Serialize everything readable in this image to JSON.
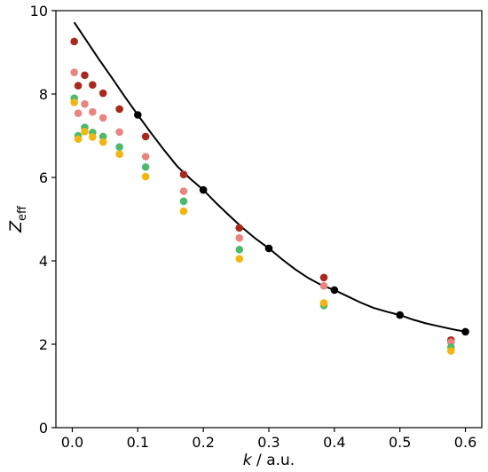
{
  "chart_data": {
    "type": "scatter",
    "title": "",
    "xlabel": "a.u.",
    "xlabel_var": "k",
    "xlabel_sep": " / ",
    "ylabel_main": "Z",
    "ylabel_sub": "eff",
    "xlim": [
      -0.025,
      0.625
    ],
    "ylim": [
      0,
      10
    ],
    "xticks": [
      0.0,
      0.1,
      0.2,
      0.3,
      0.4,
      0.5,
      0.6
    ],
    "xtick_labels": [
      "0.0",
      "0.1",
      "0.2",
      "0.3",
      "0.4",
      "0.5",
      "0.6"
    ],
    "yticks": [
      0,
      2,
      4,
      6,
      8,
      10
    ],
    "ytick_labels": [
      "0",
      "2",
      "4",
      "6",
      "8",
      "10"
    ],
    "grid": false,
    "curve": {
      "color": "#000000",
      "x": [
        0.003,
        0.02,
        0.04,
        0.06,
        0.08,
        0.1,
        0.12,
        0.14,
        0.16,
        0.18,
        0.2,
        0.22,
        0.24,
        0.26,
        0.28,
        0.3,
        0.32,
        0.34,
        0.36,
        0.38,
        0.4,
        0.42,
        0.44,
        0.46,
        0.48,
        0.5,
        0.52,
        0.54,
        0.56,
        0.58,
        0.6
      ],
      "y": [
        9.72,
        9.32,
        8.85,
        8.4,
        7.94,
        7.5,
        7.07,
        6.66,
        6.27,
        5.97,
        5.7,
        5.38,
        5.08,
        4.79,
        4.53,
        4.3,
        4.04,
        3.8,
        3.59,
        3.42,
        3.3,
        3.15,
        3.0,
        2.87,
        2.78,
        2.7,
        2.59,
        2.5,
        2.43,
        2.36,
        2.3
      ]
    },
    "series": [
      {
        "color": "#000000",
        "x": [
          0.1,
          0.2,
          0.3,
          0.4,
          0.5,
          0.6
        ],
        "y": [
          7.5,
          5.7,
          4.3,
          3.3,
          2.7,
          2.3
        ]
      },
      {
        "color": "#a8291f",
        "x": [
          0.003,
          0.009,
          0.019,
          0.031,
          0.047,
          0.072,
          0.112,
          0.17,
          0.255,
          0.384,
          0.578
        ],
        "y": [
          9.26,
          8.2,
          8.45,
          8.22,
          8.02,
          7.64,
          6.98,
          6.07,
          4.79,
          3.6,
          2.1
        ]
      },
      {
        "color": "#e88580",
        "x": [
          0.003,
          0.009,
          0.019,
          0.031,
          0.047,
          0.072,
          0.112,
          0.17,
          0.255,
          0.384,
          0.578
        ],
        "y": [
          8.52,
          7.54,
          7.76,
          7.57,
          7.43,
          7.09,
          6.5,
          5.67,
          4.55,
          3.4,
          2.05
        ]
      },
      {
        "color": "#4cba6c",
        "x": [
          0.003,
          0.009,
          0.019,
          0.031,
          0.047,
          0.072,
          0.112,
          0.17,
          0.255,
          0.384,
          0.578
        ],
        "y": [
          7.9,
          7.0,
          7.2,
          7.08,
          6.98,
          6.73,
          6.25,
          5.43,
          4.27,
          2.93,
          1.93
        ]
      },
      {
        "color": "#f2b611",
        "x": [
          0.003,
          0.009,
          0.019,
          0.031,
          0.047,
          0.072,
          0.112,
          0.17,
          0.255,
          0.384,
          0.578
        ],
        "y": [
          7.8,
          6.92,
          7.1,
          6.97,
          6.85,
          6.56,
          6.02,
          5.19,
          4.05,
          2.99,
          1.84
        ]
      }
    ]
  }
}
